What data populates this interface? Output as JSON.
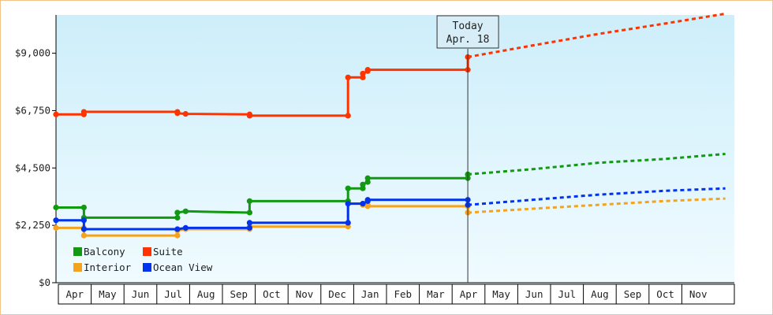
{
  "chart_data": {
    "type": "line",
    "style": "step",
    "title": "",
    "xlabel": "",
    "ylabel": "",
    "ylim": [
      0,
      10500
    ],
    "yticks": [
      {
        "value": 0,
        "label": "$0"
      },
      {
        "value": 2250,
        "label": "$2,250"
      },
      {
        "value": 4500,
        "label": "$4,500"
      },
      {
        "value": 6750,
        "label": "$6,750"
      },
      {
        "value": 9000,
        "label": "$9,000"
      }
    ],
    "months": [
      "Apr",
      "May",
      "Jun",
      "Jul",
      "Aug",
      "Sep",
      "Oct",
      "Nov",
      "Dec",
      "Jan",
      "Feb",
      "Mar",
      "Apr",
      "May",
      "Jun",
      "Jul",
      "Aug",
      "Sep",
      "Oct",
      "Nov"
    ],
    "today": {
      "line1": "Today",
      "line2": "Apr. 18",
      "month_index": 12.55
    },
    "grid": false,
    "legend_position": "bottom-left",
    "series": [
      {
        "name": "Balcony",
        "color": "#119911",
        "points": [
          [
            0,
            2950
          ],
          [
            0.85,
            2950
          ],
          [
            0.85,
            2550
          ],
          [
            3.7,
            2550
          ],
          [
            3.7,
            2750
          ],
          [
            3.95,
            2800
          ],
          [
            5.9,
            2750
          ],
          [
            5.9,
            3200
          ],
          [
            8.9,
            3200
          ],
          [
            8.9,
            3700
          ],
          [
            9.35,
            3700
          ],
          [
            9.35,
            3850
          ],
          [
            9.5,
            3950
          ],
          [
            9.5,
            4100
          ],
          [
            12.55,
            4100
          ],
          [
            12.55,
            4250
          ]
        ],
        "forecast": [
          [
            12.55,
            4250
          ],
          [
            14.5,
            4450
          ],
          [
            16.5,
            4700
          ],
          [
            18.5,
            4850
          ],
          [
            20.4,
            5050
          ]
        ]
      },
      {
        "name": "Suite",
        "color": "#ff3300",
        "points": [
          [
            0,
            6600
          ],
          [
            0.85,
            6600
          ],
          [
            0.85,
            6700
          ],
          [
            3.7,
            6700
          ],
          [
            3.7,
            6650
          ],
          [
            3.95,
            6620
          ],
          [
            5.9,
            6600
          ],
          [
            5.9,
            6550
          ],
          [
            8.9,
            6550
          ],
          [
            8.9,
            8050
          ],
          [
            9.35,
            8050
          ],
          [
            9.35,
            8200
          ],
          [
            9.5,
            8300
          ],
          [
            9.5,
            8350
          ],
          [
            12.55,
            8350
          ],
          [
            12.55,
            8850
          ]
        ],
        "forecast": [
          [
            12.55,
            8850
          ],
          [
            14.5,
            9300
          ],
          [
            16.5,
            9750
          ],
          [
            18.5,
            10150
          ],
          [
            20.4,
            10550
          ]
        ]
      },
      {
        "name": "Interior",
        "color": "#f5a21c",
        "points": [
          [
            0,
            2150
          ],
          [
            0.85,
            2150
          ],
          [
            0.85,
            1850
          ],
          [
            3.7,
            1850
          ],
          [
            3.7,
            2050
          ],
          [
            3.95,
            2100
          ],
          [
            5.9,
            2100
          ],
          [
            5.9,
            2200
          ],
          [
            8.9,
            2200
          ],
          [
            8.9,
            3100
          ],
          [
            9.35,
            3100
          ],
          [
            9.35,
            3050
          ],
          [
            9.5,
            3050
          ],
          [
            9.5,
            3000
          ],
          [
            12.55,
            3000
          ],
          [
            12.55,
            2750
          ]
        ],
        "forecast": [
          [
            12.55,
            2750
          ],
          [
            14.5,
            2900
          ],
          [
            16.5,
            3050
          ],
          [
            18.5,
            3200
          ],
          [
            20.4,
            3300
          ]
        ]
      },
      {
        "name": "Ocean View",
        "color": "#0033ee",
        "points": [
          [
            0,
            2450
          ],
          [
            0.85,
            2450
          ],
          [
            0.85,
            2100
          ],
          [
            3.7,
            2100
          ],
          [
            3.7,
            2100
          ],
          [
            3.95,
            2150
          ],
          [
            5.9,
            2150
          ],
          [
            5.9,
            2350
          ],
          [
            8.9,
            2350
          ],
          [
            8.9,
            3100
          ],
          [
            9.35,
            3100
          ],
          [
            9.35,
            3100
          ],
          [
            9.5,
            3200
          ],
          [
            9.5,
            3250
          ],
          [
            12.55,
            3250
          ],
          [
            12.55,
            3050
          ]
        ],
        "forecast": [
          [
            12.55,
            3050
          ],
          [
            14.5,
            3250
          ],
          [
            16.5,
            3450
          ],
          [
            18.5,
            3600
          ],
          [
            20.4,
            3700
          ]
        ]
      }
    ]
  }
}
